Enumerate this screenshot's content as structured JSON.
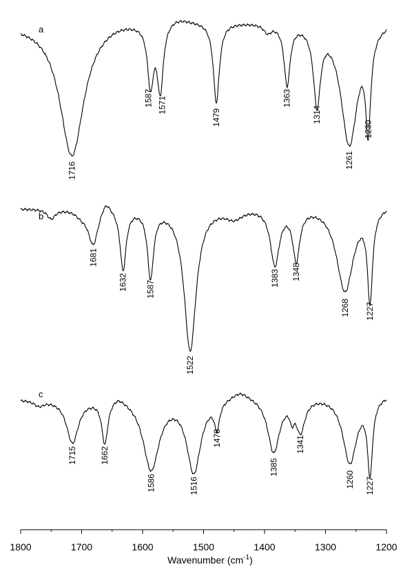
{
  "chart_data": {
    "type": "line",
    "x_axis": {
      "label_main": "Wavenumber",
      "label_unit_prefix": "(cm",
      "label_unit_sup": "-1",
      "label_unit_suffix": ")",
      "range": [
        1800,
        1200
      ],
      "ticks": [
        "1800",
        "1700",
        "1600",
        "1500",
        "1400",
        "1300",
        "1200"
      ],
      "reversed": true
    },
    "panels": [
      {
        "label": "a",
        "peaks": [
          {
            "x": 1716,
            "label": "1716"
          },
          {
            "x": 1587,
            "label": "1587"
          },
          {
            "x": 1571,
            "label": "1571"
          },
          {
            "x": 1479,
            "label": "1479"
          },
          {
            "x": 1363,
            "label": "1363"
          },
          {
            "x": 1314,
            "label": "1314"
          },
          {
            "x": 1261,
            "label": "1261"
          },
          {
            "x": 1230,
            "label": "1230"
          }
        ]
      },
      {
        "label": "b",
        "peaks": [
          {
            "x": 1681,
            "label": "1681"
          },
          {
            "x": 1632,
            "label": "1632"
          },
          {
            "x": 1587,
            "label": "1587"
          },
          {
            "x": 1522,
            "label": "1522"
          },
          {
            "x": 1383,
            "label": "1383"
          },
          {
            "x": 1348,
            "label": "1348"
          },
          {
            "x": 1268,
            "label": "1268"
          },
          {
            "x": 1227,
            "label": "1227"
          }
        ]
      },
      {
        "label": "c",
        "peaks": [
          {
            "x": 1715,
            "label": "1715"
          },
          {
            "x": 1662,
            "label": "1662"
          },
          {
            "x": 1586,
            "label": "1586"
          },
          {
            "x": 1516,
            "label": "1516"
          },
          {
            "x": 1478,
            "label": "1478"
          },
          {
            "x": 1385,
            "label": "1385"
          },
          {
            "x": 1341,
            "label": "1341"
          },
          {
            "x": 1260,
            "label": "1260"
          },
          {
            "x": 1227,
            "label": "1227"
          }
        ]
      }
    ]
  }
}
